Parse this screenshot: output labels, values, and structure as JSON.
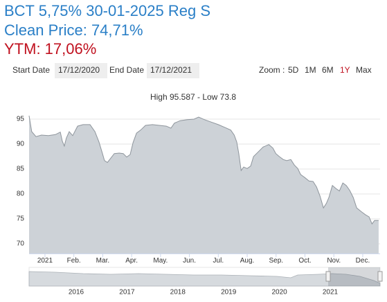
{
  "header": {
    "title": "BCT 5,75% 30-01-2025 Reg S",
    "clean_price": "Clean Price: 74,71%",
    "ytm": "YTM: 17,06%"
  },
  "controls": {
    "start_label": "Start Date",
    "start_value": "17/12/2020",
    "end_label": "End Date",
    "end_value": "17/12/2021",
    "zoom_label": "Zoom :",
    "zoom_options": [
      "5D",
      "1M",
      "6M",
      "1Y",
      "Max"
    ],
    "selected_zoom": 3
  },
  "navigator": {
    "labels": [
      "2016",
      "2017",
      "2018",
      "2019",
      "2020",
      "2021"
    ]
  },
  "chart_data": {
    "type": "area",
    "title": "High 95.587 - Low 73.8",
    "x": [
      -0.55,
      -0.46,
      -0.31,
      -0.12,
      0.12,
      0.36,
      0.53,
      0.6,
      0.67,
      0.74,
      0.84,
      0.96,
      1.13,
      1.32,
      1.56,
      1.73,
      1.87,
      1.99,
      2.06,
      2.16,
      2.28,
      2.4,
      2.57,
      2.71,
      2.83,
      2.95,
      3.05,
      3.17,
      3.31,
      3.48,
      3.72,
      3.96,
      4.2,
      4.36,
      4.48,
      4.68,
      4.92,
      5.16,
      5.32,
      5.52,
      5.76,
      6.0,
      6.24,
      6.43,
      6.55,
      6.64,
      6.71,
      6.79,
      6.88,
      7.0,
      7.12,
      7.22,
      7.36,
      7.55,
      7.75,
      7.89,
      7.99,
      8.11,
      8.25,
      8.37,
      8.51,
      8.63,
      8.75,
      8.85,
      8.99,
      9.14,
      9.28,
      9.4,
      9.52,
      9.64,
      9.74,
      9.83,
      9.95,
      10.07,
      10.19,
      10.31,
      10.43,
      10.55,
      10.67,
      10.79,
      10.96,
      11.1,
      11.22,
      11.32,
      11.41,
      11.55
    ],
    "values": [
      95.7,
      92.5,
      91.5,
      91.8,
      91.7,
      91.9,
      92.4,
      90.6,
      89.6,
      91.2,
      92.5,
      91.7,
      93.6,
      93.9,
      93.9,
      92.5,
      90.4,
      88.1,
      86.7,
      86.3,
      87.2,
      88.1,
      88.2,
      88.1,
      87.4,
      87.9,
      90.3,
      92.2,
      92.8,
      93.75,
      93.9,
      93.75,
      93.6,
      93.2,
      94.2,
      94.7,
      94.9,
      95.0,
      95.4,
      94.9,
      94.4,
      93.9,
      93.3,
      92.8,
      91.8,
      90.4,
      88.1,
      84.7,
      85.4,
      85.1,
      85.6,
      87.5,
      88.3,
      89.4,
      89.9,
      89.2,
      88.1,
      87.5,
      86.9,
      86.7,
      86.9,
      85.8,
      85.1,
      83.9,
      83.3,
      82.6,
      82.5,
      81.4,
      79.6,
      77.2,
      78.1,
      79.3,
      81.7,
      81.1,
      80.6,
      82.2,
      81.7,
      80.7,
      79.3,
      77.2,
      76.4,
      75.8,
      75.4,
      74.0,
      74.7,
      74.7
    ],
    "xlim": [
      -0.55,
      11.6
    ],
    "ylim": [
      68,
      97
    ],
    "xticks": [
      {
        "value": 0,
        "label": "2021"
      },
      {
        "value": 1,
        "label": "Feb."
      },
      {
        "value": 2,
        "label": "Mar."
      },
      {
        "value": 3,
        "label": "Apr."
      },
      {
        "value": 4,
        "label": "May."
      },
      {
        "value": 5,
        "label": "Jun."
      },
      {
        "value": 6,
        "label": "Jul."
      },
      {
        "value": 7,
        "label": "Aug."
      },
      {
        "value": 8,
        "label": "Sep."
      },
      {
        "value": 9,
        "label": "Oct."
      },
      {
        "value": 10,
        "label": "Nov."
      },
      {
        "value": 11,
        "label": "Dec."
      }
    ],
    "yticks": [
      70,
      75,
      80,
      85,
      90,
      95
    ],
    "grid": true,
    "color": "#cdd2d7",
    "line_color": "#8e959c"
  }
}
